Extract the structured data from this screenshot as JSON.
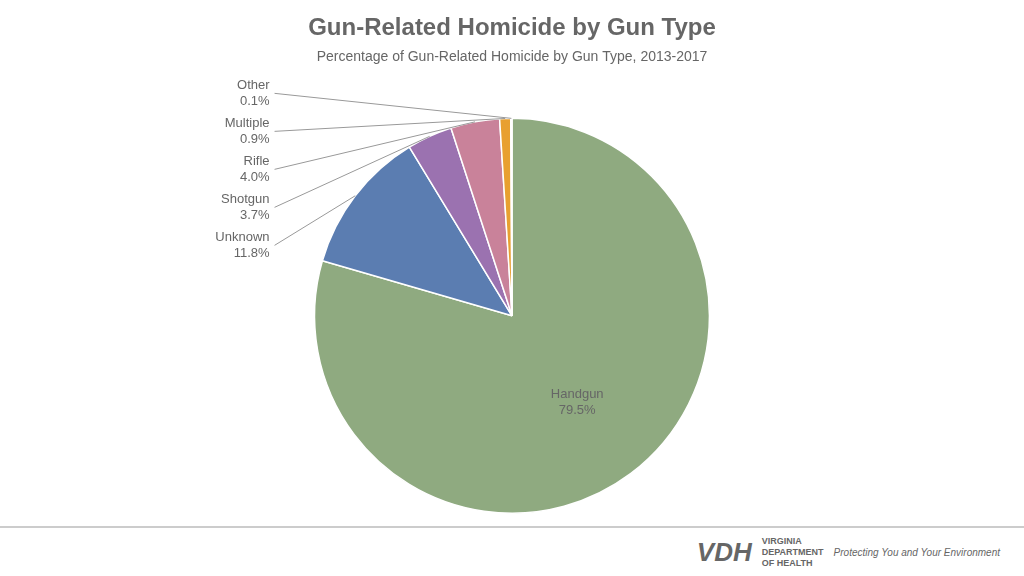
{
  "chart_data": {
    "type": "pie",
    "title": "Gun-Related Homicide by Gun Type",
    "subtitle": "Percentage of Gun-Related Homicide by Gun Type, 2013-2017",
    "categories": [
      "Handgun",
      "Unknown",
      "Shotgun",
      "Rifle",
      "Multiple",
      "Other"
    ],
    "values": [
      79.5,
      11.8,
      3.7,
      4.0,
      0.9,
      0.1
    ],
    "value_labels": [
      "79.5%",
      "11.8%",
      "3.7%",
      "4.0%",
      "0.9%",
      "0.1%"
    ],
    "colors": [
      "#8faa80",
      "#5b7db1",
      "#9b72b0",
      "#c9829a",
      "#e8a030",
      "#f0ede8"
    ],
    "data_labels": true,
    "annotations": [
      "VDH",
      "VIRGINIA",
      "DEPARTMENT",
      "OF HEALTH",
      "Protecting You and Your Environment"
    ]
  }
}
